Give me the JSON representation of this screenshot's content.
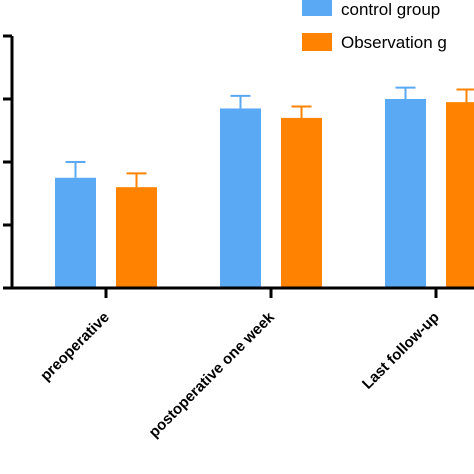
{
  "chart_data": {
    "type": "bar",
    "title": "",
    "xlabel": "",
    "ylabel": "",
    "categories": [
      "preoperative",
      "postoperative one week",
      "Last follow-up"
    ],
    "series": [
      {
        "name": "control group",
        "color": "#5aa9f5",
        "values": [
          1.75,
          2.85,
          3.0
        ],
        "errors": [
          0.25,
          0.2,
          0.18
        ]
      },
      {
        "name": "Observation g",
        "color": "#ff8200",
        "values": [
          1.6,
          2.7,
          2.95
        ],
        "errors": [
          0.22,
          0.18,
          0.2
        ]
      }
    ],
    "ylim": [
      0,
      4
    ],
    "yticks": [
      0,
      1,
      2,
      3,
      4
    ],
    "grid": false,
    "legend": "top-right",
    "error_bars": true
  }
}
